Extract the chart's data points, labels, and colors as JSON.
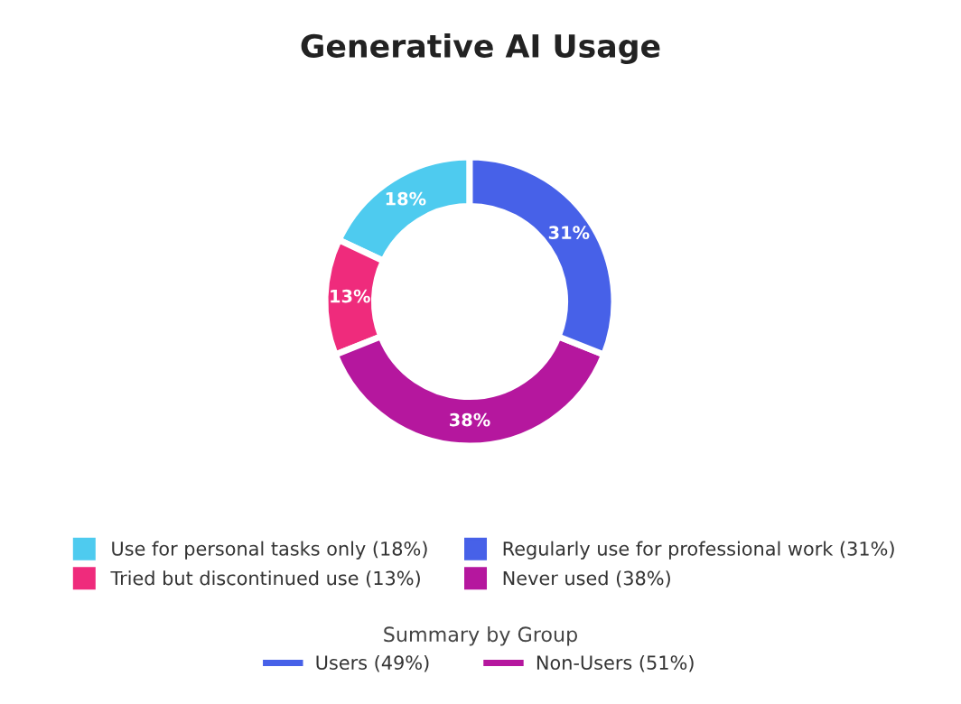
{
  "chart_data": {
    "type": "donut",
    "title": "Generative AI Usage",
    "categories": [
      "Use for personal tasks only (18%)",
      "Tried but discontinued use (13%)",
      "Never used (38%)",
      "Regularly use for professional work (31%)"
    ],
    "values": [
      18,
      13,
      38,
      31
    ],
    "colors": [
      "#4ecbef",
      "#ef2b7c",
      "#b5179e",
      "#4761e8"
    ],
    "value_labels": [
      "18%",
      "13%",
      "38%",
      "31%"
    ],
    "legend": "bottom",
    "legend_title": "Summary by Group",
    "annotations": [
      "Users (49%)",
      "Non-Users (51%)"
    ]
  }
}
